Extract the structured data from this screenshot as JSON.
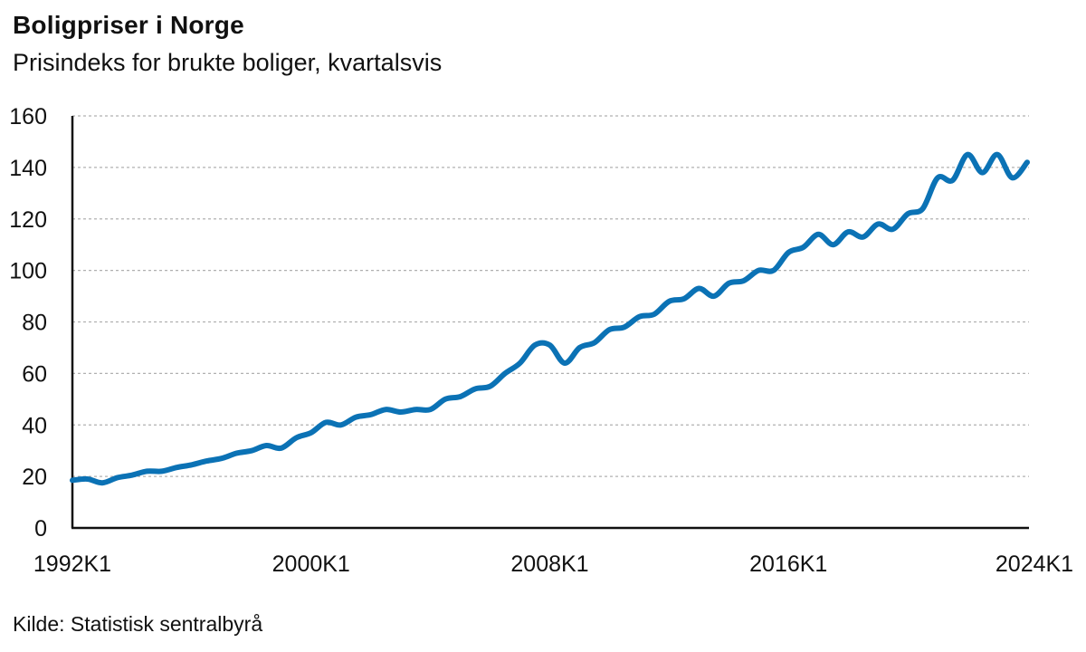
{
  "chart_data": {
    "type": "line",
    "title": "Boligpriser i Norge",
    "subtitle": "Prisindeks for brukte boliger, kvartalsvis",
    "source": "Kilde: Statistisk sentralbyrå",
    "xlabel": "",
    "ylabel": "",
    "ylim": [
      0,
      160
    ],
    "yticks": [
      0,
      20,
      40,
      60,
      80,
      100,
      120,
      140,
      160
    ],
    "xticks": [
      "1992K1",
      "2000K1",
      "2008K1",
      "2016K1",
      "2024K1"
    ],
    "grid": true,
    "line_color": "#0b72b5",
    "series": [
      {
        "x": [
          1992.0,
          1992.5,
          1993.0,
          1993.5,
          1994.0,
          1994.5,
          1995.0,
          1995.5,
          1996.0,
          1996.5,
          1997.0,
          1997.5,
          1998.0,
          1998.5,
          1999.0,
          1999.5,
          2000.0,
          2000.5,
          2001.0,
          2001.5,
          2002.0,
          2002.5,
          2003.0,
          2003.5,
          2004.0,
          2004.5,
          2005.0,
          2005.5,
          2006.0,
          2006.5,
          2007.0,
          2007.5,
          2008.0,
          2008.5,
          2009.0,
          2009.5,
          2010.0,
          2010.5,
          2011.0,
          2011.5,
          2012.0,
          2012.5,
          2013.0,
          2013.5,
          2014.0,
          2014.5,
          2015.0,
          2015.5,
          2016.0,
          2016.5,
          2017.0,
          2017.5,
          2018.0,
          2018.5,
          2019.0,
          2019.5,
          2020.0,
          2020.5,
          2021.0,
          2021.5,
          2022.0,
          2022.5,
          2023.0,
          2023.5,
          2024.0
        ],
        "values": [
          18.5,
          19,
          17.5,
          19.5,
          20.5,
          22,
          22,
          23.5,
          24.5,
          26,
          27,
          29,
          30,
          32,
          31,
          35,
          37,
          41,
          40,
          43,
          44,
          46,
          45,
          46,
          46,
          50,
          51,
          54,
          55,
          60,
          64,
          71,
          71,
          64,
          70,
          72,
          77,
          78,
          82,
          83,
          88,
          89,
          93,
          90,
          95,
          96,
          100,
          100,
          107,
          109,
          114,
          110,
          115,
          113,
          118,
          116,
          122,
          124,
          136,
          135,
          145,
          138,
          145,
          136,
          142
        ]
      }
    ]
  }
}
